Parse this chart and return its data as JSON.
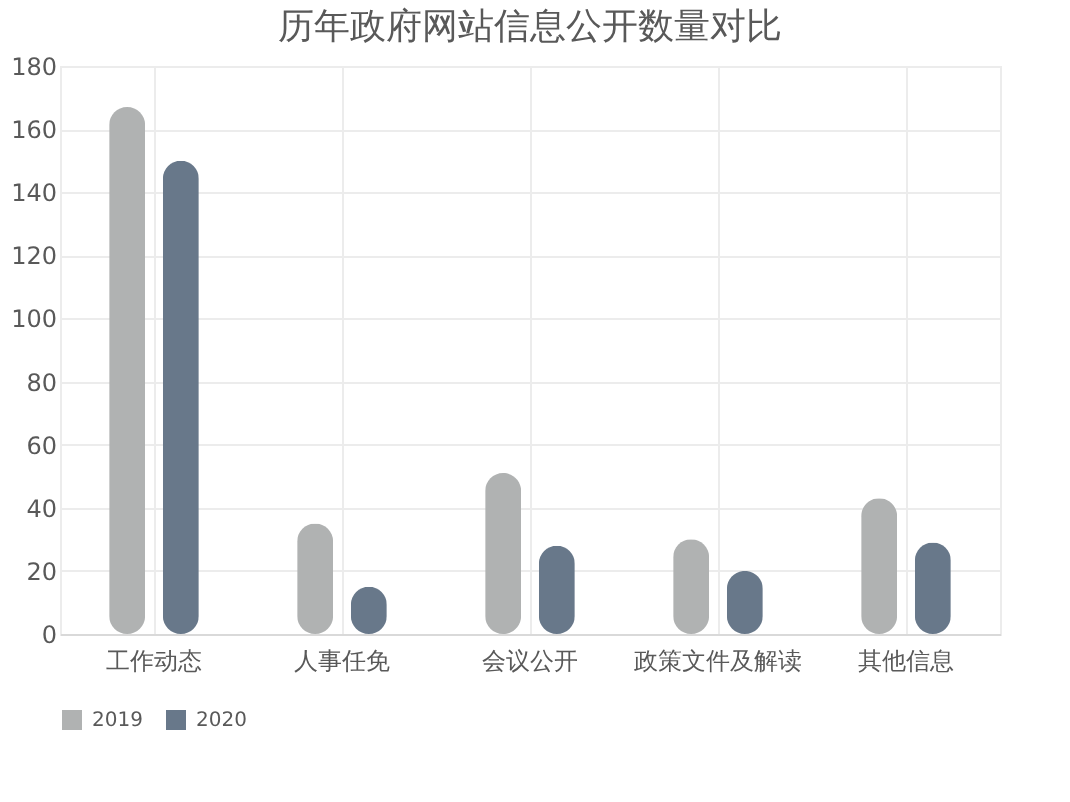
{
  "chart_data": {
    "type": "bar",
    "title": "历年政府网站信息公开数量对比",
    "categories": [
      "工作动态",
      "人事任免",
      "会议公开",
      "政策文件及解读",
      "其他信息"
    ],
    "series": [
      {
        "name": "2019",
        "color": "#b0b2b2",
        "values": [
          167,
          35,
          51,
          30,
          43
        ]
      },
      {
        "name": "2020",
        "color": "#68788a",
        "values": [
          150,
          15,
          28,
          20,
          29
        ]
      }
    ],
    "ylim": [
      0,
      180
    ],
    "yticks": [
      0,
      20,
      40,
      60,
      80,
      100,
      120,
      140,
      160,
      180
    ],
    "grid": true,
    "legend": "bottom"
  }
}
